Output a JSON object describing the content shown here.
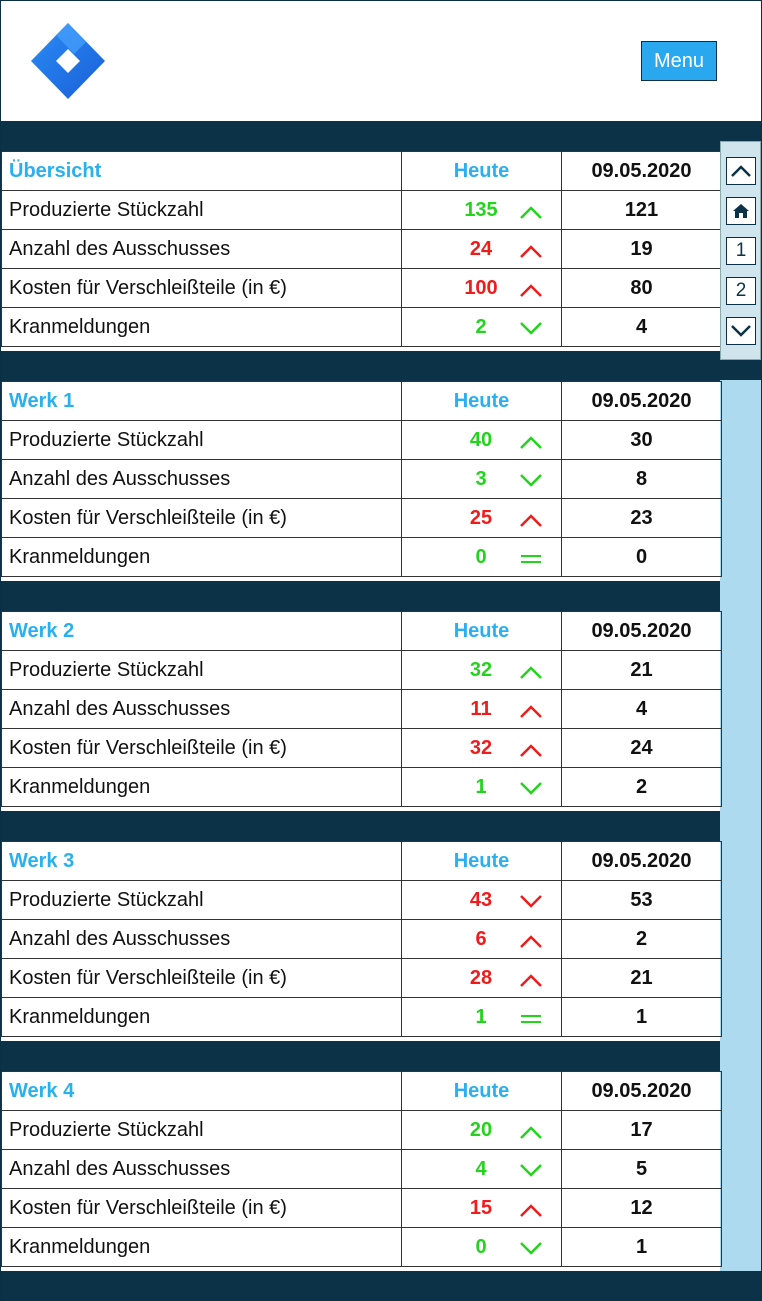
{
  "header": {
    "menu_label": "Menu"
  },
  "nav": {
    "page1": "1",
    "page2": "2"
  },
  "colors": {
    "accent": "#29b0f0",
    "dark": "#0b3246",
    "up_good": "#22d41c",
    "bad": "#f01c1c"
  },
  "sections": [
    {
      "title": "Übersicht",
      "today_label": "Heute",
      "date": "09.05.2020",
      "rows": [
        {
          "label": "Produzierte Stückzahl",
          "today": "135",
          "trend": "up",
          "color": "green",
          "prev": "121"
        },
        {
          "label": "Anzahl des Ausschusses",
          "today": "24",
          "trend": "up",
          "color": "red",
          "prev": "19"
        },
        {
          "label": "Kosten für Verschleißteile (in €)",
          "today": "100",
          "trend": "up",
          "color": "red",
          "prev": "80"
        },
        {
          "label": "Kranmeldungen",
          "today": "2",
          "trend": "down",
          "color": "green",
          "prev": "4"
        }
      ]
    },
    {
      "title": "Werk 1",
      "today_label": "Heute",
      "date": "09.05.2020",
      "rows": [
        {
          "label": "Produzierte Stückzahl",
          "today": "40",
          "trend": "up",
          "color": "green",
          "prev": "30"
        },
        {
          "label": "Anzahl des Ausschusses",
          "today": "3",
          "trend": "down",
          "color": "green",
          "prev": "8"
        },
        {
          "label": "Kosten für Verschleißteile (in €)",
          "today": "25",
          "trend": "up",
          "color": "red",
          "prev": "23"
        },
        {
          "label": "Kranmeldungen",
          "today": "0",
          "trend": "equal",
          "color": "green",
          "prev": "0"
        }
      ]
    },
    {
      "title": "Werk 2",
      "today_label": "Heute",
      "date": "09.05.2020",
      "rows": [
        {
          "label": "Produzierte Stückzahl",
          "today": "32",
          "trend": "up",
          "color": "green",
          "prev": "21"
        },
        {
          "label": "Anzahl des Ausschusses",
          "today": "11",
          "trend": "up",
          "color": "red",
          "prev": "4"
        },
        {
          "label": "Kosten für Verschleißteile (in €)",
          "today": "32",
          "trend": "up",
          "color": "red",
          "prev": "24"
        },
        {
          "label": "Kranmeldungen",
          "today": "1",
          "trend": "down",
          "color": "green",
          "prev": "2"
        }
      ]
    },
    {
      "title": "Werk 3",
      "today_label": "Heute",
      "date": "09.05.2020",
      "rows": [
        {
          "label": "Produzierte Stückzahl",
          "today": "43",
          "trend": "down",
          "color": "red",
          "prev": "53"
        },
        {
          "label": "Anzahl des Ausschusses",
          "today": "6",
          "trend": "up",
          "color": "red",
          "prev": "2"
        },
        {
          "label": "Kosten für Verschleißteile (in €)",
          "today": "28",
          "trend": "up",
          "color": "red",
          "prev": "21"
        },
        {
          "label": "Kranmeldungen",
          "today": "1",
          "trend": "equal",
          "color": "green",
          "prev": "1"
        }
      ]
    },
    {
      "title": "Werk 4",
      "today_label": "Heute",
      "date": "09.05.2020",
      "rows": [
        {
          "label": "Produzierte Stückzahl",
          "today": "20",
          "trend": "up",
          "color": "green",
          "prev": "17"
        },
        {
          "label": "Anzahl des Ausschusses",
          "today": "4",
          "trend": "down",
          "color": "green",
          "prev": "5"
        },
        {
          "label": "Kosten für Verschleißteile (in €)",
          "today": "15",
          "trend": "up",
          "color": "red",
          "prev": "12"
        },
        {
          "label": "Kranmeldungen",
          "today": "0",
          "trend": "down",
          "color": "green",
          "prev": "1"
        }
      ]
    }
  ]
}
